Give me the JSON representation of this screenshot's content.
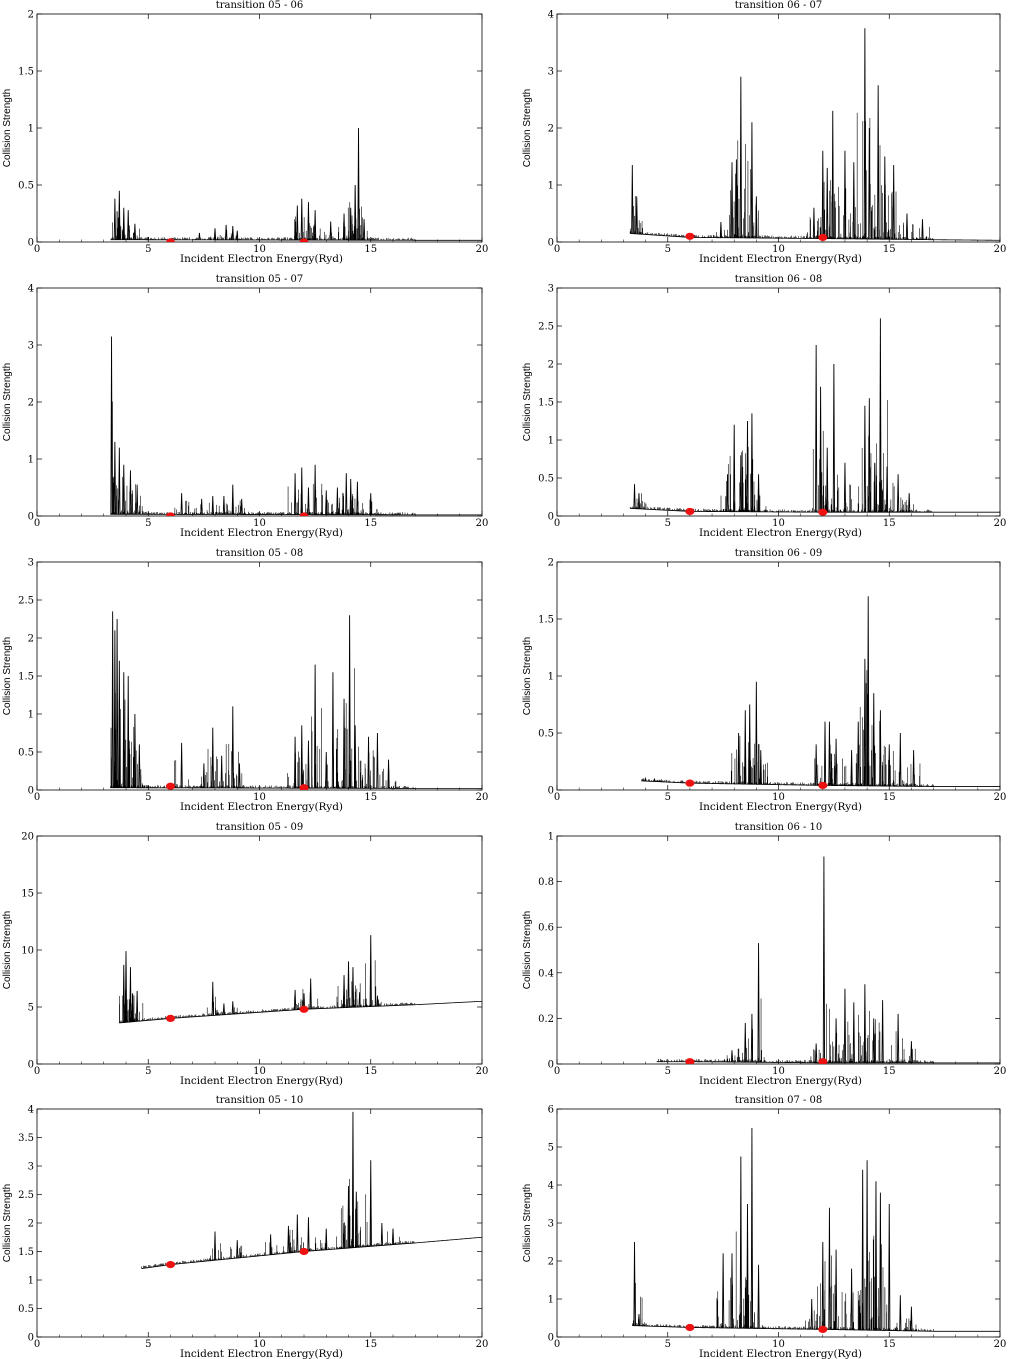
{
  "xlabel": "Incident Electron Energy(Ryd)",
  "ylabel": "Collision Strength",
  "marker_color": "#ee1111",
  "line_color": "#000000",
  "chart_data": [
    {
      "type": "line",
      "title": "transition 05 - 06",
      "xlim": [
        0,
        20
      ],
      "ylim": [
        0,
        2
      ],
      "xticks": [
        "0",
        "5",
        "10",
        "15",
        "20"
      ],
      "yticks": [
        "0",
        "0.5",
        "1",
        "1.5",
        "2"
      ],
      "baseline": [
        [
          3.3,
          0.02
        ],
        [
          17,
          0.015
        ],
        [
          20,
          0.015
        ]
      ],
      "resonances": [
        [
          3.5,
          0.38
        ],
        [
          3.7,
          0.45
        ],
        [
          3.9,
          0.3
        ],
        [
          4.1,
          0.28
        ],
        [
          4.4,
          0.16
        ],
        [
          7.3,
          0.08
        ],
        [
          8.0,
          0.12
        ],
        [
          8.5,
          0.15
        ],
        [
          8.8,
          0.14
        ],
        [
          9.0,
          0.1
        ],
        [
          11.7,
          0.32
        ],
        [
          11.9,
          0.38
        ],
        [
          12.2,
          0.35
        ],
        [
          12.5,
          0.28
        ],
        [
          13.2,
          0.18
        ],
        [
          13.8,
          0.25
        ],
        [
          14.1,
          0.3
        ],
        [
          14.3,
          0.5
        ],
        [
          14.45,
          1.0
        ],
        [
          14.7,
          0.2
        ]
      ],
      "points": [
        [
          6,
          0.0
        ],
        [
          12,
          0.0
        ]
      ]
    },
    {
      "type": "line",
      "title": "transition 06 - 07",
      "xlim": [
        0,
        20
      ],
      "ylim": [
        0,
        4
      ],
      "xticks": [
        "0",
        "5",
        "10",
        "15",
        "20"
      ],
      "yticks": [
        "0",
        "1",
        "2",
        "3",
        "4"
      ],
      "baseline": [
        [
          3.3,
          0.15
        ],
        [
          6,
          0.08
        ],
        [
          12,
          0.06
        ],
        [
          17,
          0.04
        ],
        [
          20,
          0.03
        ]
      ],
      "resonances": [
        [
          3.4,
          1.35
        ],
        [
          3.6,
          0.8
        ],
        [
          7.4,
          0.35
        ],
        [
          7.9,
          1.4
        ],
        [
          8.1,
          1.45
        ],
        [
          8.3,
          2.9
        ],
        [
          8.8,
          2.1
        ],
        [
          9.0,
          0.8
        ],
        [
          11.6,
          0.6
        ],
        [
          12.0,
          1.6
        ],
        [
          12.2,
          1.3
        ],
        [
          12.45,
          2.3
        ],
        [
          13.0,
          1.6
        ],
        [
          13.4,
          1.4
        ],
        [
          13.9,
          3.75
        ],
        [
          14.1,
          2.0
        ],
        [
          14.5,
          2.75
        ],
        [
          14.8,
          1.5
        ],
        [
          15.2,
          1.35
        ],
        [
          15.8,
          0.5
        ],
        [
          16.5,
          0.4
        ]
      ],
      "points": [
        [
          6,
          0.1
        ],
        [
          12,
          0.08
        ]
      ]
    },
    {
      "type": "line",
      "title": "transition 05 - 07",
      "xlim": [
        0,
        20
      ],
      "ylim": [
        0,
        4
      ],
      "xticks": [
        "0",
        "5",
        "10",
        "15",
        "20"
      ],
      "yticks": [
        "0",
        "1",
        "2",
        "3",
        "4"
      ],
      "baseline": [
        [
          3.3,
          0.03
        ],
        [
          17,
          0.02
        ],
        [
          20,
          0.02
        ]
      ],
      "resonances": [
        [
          3.35,
          3.15
        ],
        [
          3.5,
          1.3
        ],
        [
          3.7,
          1.2
        ],
        [
          3.9,
          0.9
        ],
        [
          4.2,
          0.8
        ],
        [
          4.5,
          0.55
        ],
        [
          6.5,
          0.4
        ],
        [
          7.4,
          0.3
        ],
        [
          7.9,
          0.35
        ],
        [
          8.4,
          0.35
        ],
        [
          8.8,
          0.55
        ],
        [
          9.2,
          0.3
        ],
        [
          11.6,
          0.75
        ],
        [
          11.9,
          0.85
        ],
        [
          12.2,
          0.5
        ],
        [
          12.5,
          0.9
        ],
        [
          13.0,
          0.45
        ],
        [
          13.5,
          0.5
        ],
        [
          13.9,
          0.75
        ],
        [
          14.1,
          0.65
        ],
        [
          14.4,
          0.6
        ],
        [
          15.0,
          0.4
        ]
      ],
      "points": [
        [
          6,
          0.0
        ],
        [
          12,
          0.0
        ]
      ]
    },
    {
      "type": "line",
      "title": "transition 06 - 08",
      "xlim": [
        0,
        20
      ],
      "ylim": [
        0,
        3
      ],
      "xticks": [
        "0",
        "5",
        "10",
        "15",
        "20"
      ],
      "yticks": [
        "0",
        "0.5",
        "1",
        "1.5",
        "2",
        "2.5",
        "3"
      ],
      "baseline": [
        [
          3.3,
          0.1
        ],
        [
          6,
          0.06
        ],
        [
          12,
          0.05
        ],
        [
          17,
          0.05
        ],
        [
          20,
          0.05
        ]
      ],
      "resonances": [
        [
          3.5,
          0.42
        ],
        [
          3.7,
          0.3
        ],
        [
          7.7,
          0.55
        ],
        [
          8.0,
          1.2
        ],
        [
          8.3,
          0.8
        ],
        [
          8.6,
          1.25
        ],
        [
          8.8,
          1.35
        ],
        [
          9.1,
          0.55
        ],
        [
          11.7,
          2.25
        ],
        [
          11.9,
          1.7
        ],
        [
          12.2,
          0.9
        ],
        [
          12.5,
          2.0
        ],
        [
          13.0,
          0.7
        ],
        [
          13.9,
          1.45
        ],
        [
          14.1,
          1.55
        ],
        [
          14.35,
          0.7
        ],
        [
          14.6,
          2.6
        ],
        [
          14.9,
          0.65
        ],
        [
          15.4,
          0.55
        ],
        [
          15.9,
          0.3
        ]
      ],
      "points": [
        [
          6,
          0.06
        ],
        [
          12,
          0.05
        ]
      ]
    },
    {
      "type": "line",
      "title": "transition 05 - 08",
      "xlim": [
        0,
        20
      ],
      "ylim": [
        0,
        3
      ],
      "xticks": [
        "0",
        "5",
        "10",
        "15",
        "20"
      ],
      "yticks": [
        "0",
        "0.5",
        "1",
        "1.5",
        "2",
        "2.5",
        "3"
      ],
      "baseline": [
        [
          3.3,
          0.03
        ],
        [
          17,
          0.02
        ],
        [
          20,
          0.02
        ]
      ],
      "resonances": [
        [
          3.4,
          2.35
        ],
        [
          3.5,
          2.1
        ],
        [
          3.6,
          2.25
        ],
        [
          3.7,
          1.7
        ],
        [
          3.9,
          1.55
        ],
        [
          4.1,
          1.5
        ],
        [
          4.4,
          1.0
        ],
        [
          4.6,
          0.6
        ],
        [
          6.5,
          0.62
        ],
        [
          7.5,
          0.35
        ],
        [
          7.9,
          0.82
        ],
        [
          8.3,
          0.45
        ],
        [
          8.8,
          1.1
        ],
        [
          9.1,
          0.35
        ],
        [
          11.6,
          0.7
        ],
        [
          11.9,
          0.85
        ],
        [
          12.2,
          0.65
        ],
        [
          12.5,
          1.65
        ],
        [
          13.0,
          0.5
        ],
        [
          13.3,
          1.55
        ],
        [
          13.8,
          1.2
        ],
        [
          14.05,
          2.3
        ],
        [
          14.3,
          0.85
        ],
        [
          14.9,
          0.7
        ],
        [
          15.3,
          0.75
        ],
        [
          15.8,
          0.4
        ]
      ],
      "points": [
        [
          6,
          0.05
        ],
        [
          12,
          0.03
        ]
      ]
    },
    {
      "type": "line",
      "title": "transition 06 - 09",
      "xlim": [
        0,
        20
      ],
      "ylim": [
        0,
        2
      ],
      "xticks": [
        "0",
        "5",
        "10",
        "15",
        "20"
      ],
      "yticks": [
        "0",
        "0.5",
        "1",
        "1.5",
        "2"
      ],
      "baseline": [
        [
          3.8,
          0.08
        ],
        [
          6,
          0.06
        ],
        [
          12,
          0.04
        ],
        [
          17,
          0.03
        ],
        [
          20,
          0.03
        ]
      ],
      "resonances": [
        [
          4.0,
          0.1
        ],
        [
          4.4,
          0.1
        ],
        [
          8.2,
          0.5
        ],
        [
          8.5,
          0.7
        ],
        [
          8.7,
          0.75
        ],
        [
          9.0,
          0.95
        ],
        [
          9.2,
          0.35
        ],
        [
          11.7,
          0.4
        ],
        [
          12.1,
          0.6
        ],
        [
          12.3,
          0.6
        ],
        [
          12.6,
          0.45
        ],
        [
          13.3,
          0.35
        ],
        [
          13.6,
          0.6
        ],
        [
          13.9,
          1.15
        ],
        [
          14.05,
          1.7
        ],
        [
          14.3,
          0.85
        ],
        [
          14.6,
          0.7
        ],
        [
          15.0,
          0.4
        ],
        [
          15.5,
          0.5
        ],
        [
          16.1,
          0.35
        ]
      ],
      "points": [
        [
          6,
          0.06
        ],
        [
          12,
          0.04
        ]
      ]
    },
    {
      "type": "line",
      "title": "transition 05 - 09",
      "xlim": [
        0,
        20
      ],
      "ylim": [
        0,
        20
      ],
      "xticks": [
        "0",
        "5",
        "10",
        "15",
        "20"
      ],
      "yticks": [
        "0",
        "5",
        "10",
        "15",
        "20"
      ],
      "baseline": [
        [
          3.7,
          3.6
        ],
        [
          6,
          4.0
        ],
        [
          12,
          4.8
        ],
        [
          17,
          5.2
        ],
        [
          20,
          5.5
        ]
      ],
      "resonances": [
        [
          3.9,
          8.7
        ],
        [
          4.0,
          9.9
        ],
        [
          4.2,
          8.5
        ],
        [
          4.3,
          6.2
        ],
        [
          4.5,
          6.4
        ],
        [
          7.9,
          7.2
        ],
        [
          8.4,
          5.3
        ],
        [
          8.8,
          5.5
        ],
        [
          11.6,
          6.5
        ],
        [
          12.0,
          6.2
        ],
        [
          12.3,
          7.5
        ],
        [
          13.8,
          7.8
        ],
        [
          14.0,
          9.0
        ],
        [
          14.2,
          8.5
        ],
        [
          14.5,
          6.3
        ],
        [
          15.0,
          11.3
        ],
        [
          15.3,
          6.0
        ]
      ],
      "points": [
        [
          6,
          4.0
        ],
        [
          12,
          4.8
        ]
      ]
    },
    {
      "type": "line",
      "title": "transition 06 - 10",
      "xlim": [
        0,
        20
      ],
      "ylim": [
        0,
        1
      ],
      "xticks": [
        "0",
        "5",
        "10",
        "15",
        "20"
      ],
      "yticks": [
        "0",
        "0.2",
        "0.4",
        "0.6",
        "0.8",
        "1"
      ],
      "baseline": [
        [
          4.5,
          0.01
        ],
        [
          6,
          0.01
        ],
        [
          12,
          0.005
        ],
        [
          17,
          0.005
        ],
        [
          20,
          0.005
        ]
      ],
      "resonances": [
        [
          7.9,
          0.06
        ],
        [
          8.5,
          0.18
        ],
        [
          8.8,
          0.22
        ],
        [
          9.1,
          0.53
        ],
        [
          11.7,
          0.09
        ],
        [
          12.05,
          0.91
        ],
        [
          12.6,
          0.2
        ],
        [
          13.0,
          0.33
        ],
        [
          13.4,
          0.27
        ],
        [
          13.9,
          0.35
        ],
        [
          14.3,
          0.2
        ],
        [
          14.7,
          0.28
        ],
        [
          15.4,
          0.22
        ],
        [
          16.0,
          0.1
        ]
      ],
      "points": [
        [
          6,
          0.01
        ],
        [
          12,
          0.01
        ]
      ]
    },
    {
      "type": "line",
      "title": "transition 05 - 10",
      "xlim": [
        0,
        20
      ],
      "ylim": [
        0,
        4
      ],
      "xticks": [
        "0",
        "5",
        "10",
        "15",
        "20"
      ],
      "yticks": [
        "0",
        "0.5",
        "1",
        "1.5",
        "2",
        "2.5",
        "3",
        "3.5",
        "4"
      ],
      "baseline": [
        [
          4.7,
          1.2
        ],
        [
          6,
          1.27
        ],
        [
          12,
          1.5
        ],
        [
          17,
          1.65
        ],
        [
          20,
          1.75
        ]
      ],
      "resonances": [
        [
          8.0,
          1.85
        ],
        [
          9.0,
          1.7
        ],
        [
          10.5,
          1.8
        ],
        [
          11.3,
          1.95
        ],
        [
          11.7,
          2.15
        ],
        [
          12.2,
          2.1
        ],
        [
          13.0,
          1.9
        ],
        [
          13.8,
          2.0
        ],
        [
          14.0,
          2.65
        ],
        [
          14.2,
          3.95
        ],
        [
          14.35,
          2.55
        ],
        [
          15.0,
          3.1
        ],
        [
          15.5,
          2.0
        ],
        [
          16.0,
          1.9
        ]
      ],
      "points": [
        [
          6,
          1.27
        ],
        [
          12,
          1.5
        ]
      ]
    },
    {
      "type": "line",
      "title": "transition 07 - 08",
      "xlim": [
        0,
        20
      ],
      "ylim": [
        0,
        6
      ],
      "xticks": [
        "0",
        "5",
        "10",
        "15",
        "20"
      ],
      "yticks": [
        "0",
        "1",
        "2",
        "3",
        "4",
        "5",
        "6"
      ],
      "baseline": [
        [
          3.4,
          0.3
        ],
        [
          6,
          0.25
        ],
        [
          12,
          0.2
        ],
        [
          17,
          0.15
        ],
        [
          20,
          0.15
        ]
      ],
      "resonances": [
        [
          3.5,
          2.5
        ],
        [
          3.7,
          0.6
        ],
        [
          7.5,
          2.2
        ],
        [
          7.9,
          2.2
        ],
        [
          8.3,
          4.75
        ],
        [
          8.6,
          3.5
        ],
        [
          8.8,
          5.5
        ],
        [
          9.1,
          1.9
        ],
        [
          11.5,
          1.0
        ],
        [
          12.0,
          2.5
        ],
        [
          12.3,
          3.4
        ],
        [
          12.6,
          2.3
        ],
        [
          13.3,
          1.8
        ],
        [
          13.8,
          4.4
        ],
        [
          14.0,
          4.65
        ],
        [
          14.4,
          4.1
        ],
        [
          14.6,
          3.8
        ],
        [
          15.0,
          3.5
        ],
        [
          15.5,
          1.1
        ],
        [
          16.0,
          0.8
        ]
      ],
      "points": [
        [
          6,
          0.25
        ],
        [
          12,
          0.2
        ]
      ]
    }
  ]
}
